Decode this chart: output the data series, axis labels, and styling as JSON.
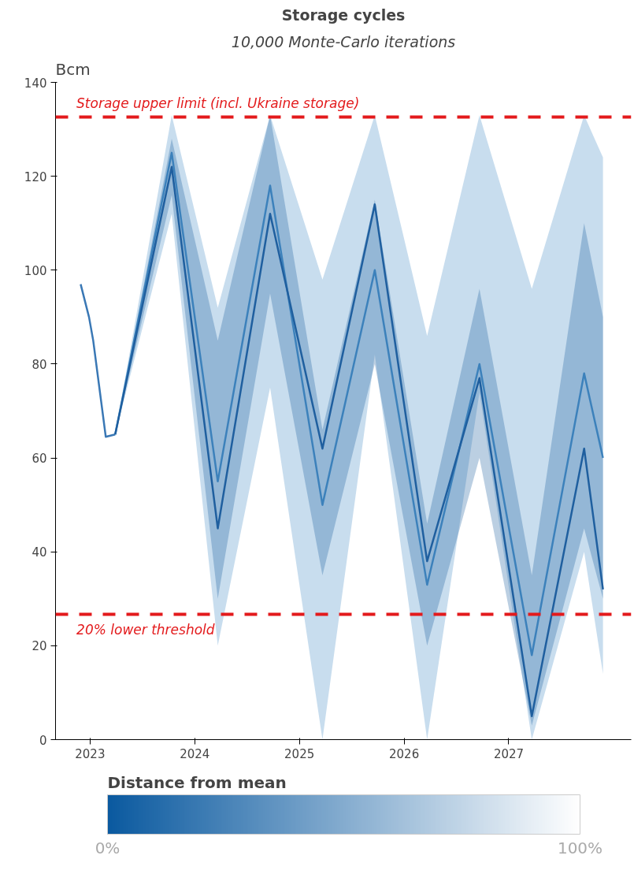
{
  "chart_data": {
    "type": "line",
    "title": "Storage cycles",
    "subtitle": "10,000 Monte-Carlo iterations",
    "ylabel": "Bcm",
    "clabel": "Distance from mean",
    "clim": [
      0,
      100
    ],
    "cticks": [
      {
        "value": 0,
        "label": "0%"
      },
      {
        "value": 100,
        "label": "100%"
      }
    ],
    "xlim": [
      2022.67,
      2028.17
    ],
    "xticks": [
      2023,
      2024,
      2025,
      2026,
      2027
    ],
    "ylim": [
      0,
      140
    ],
    "yticks": [
      0,
      20,
      40,
      60,
      80,
      100,
      120,
      140
    ],
    "grid": false,
    "marker": "none",
    "line_style": "solid",
    "series": [
      {
        "color": "#3a78b5",
        "x": [
          2022.91,
          2022.99,
          2023.03,
          2023.15,
          2023.24
        ],
        "values": [
          97,
          90,
          85,
          64.5,
          65
        ]
      },
      {
        "color": "#4a90c8",
        "x": [
          2023.24,
          2023.78,
          2024.22,
          2024.72,
          2025.22,
          2025.72,
          2026.22,
          2026.72,
          2027.22,
          2027.72,
          2027.9
        ],
        "values": [
          65,
          125,
          55,
          118,
          50,
          100,
          33,
          80,
          18,
          78,
          60
        ],
        "lower": [
          65,
          112,
          20,
          75,
          0,
          82,
          0,
          74,
          0,
          40,
          14
        ],
        "upper": [
          65,
          133,
          92,
          133,
          98,
          133,
          86,
          133,
          96,
          133,
          124
        ]
      },
      {
        "color": "#1f5f9f",
        "x": [
          2023.24,
          2023.78,
          2024.22,
          2024.72,
          2025.22,
          2025.72,
          2026.22,
          2026.72,
          2027.22,
          2027.72,
          2027.9
        ],
        "values": [
          65,
          122,
          45,
          112,
          62,
          114,
          38,
          77,
          5,
          62,
          32
        ],
        "lower": [
          65,
          116,
          30,
          95,
          35,
          80,
          20,
          60,
          3,
          45,
          30
        ],
        "upper": [
          65,
          128,
          85,
          133,
          66,
          115,
          46,
          96,
          35,
          110,
          90
        ]
      }
    ],
    "ref_lines": [
      {
        "axis": "y",
        "value": 132.6,
        "label": "Storage upper limit (incl. Ukraine storage)",
        "color": "#e31a1c",
        "line_style": "dashed"
      },
      {
        "axis": "y",
        "value": 26.7,
        "label": "20% lower threshold",
        "color": "#e31a1c",
        "line_style": "dashed"
      }
    ]
  }
}
